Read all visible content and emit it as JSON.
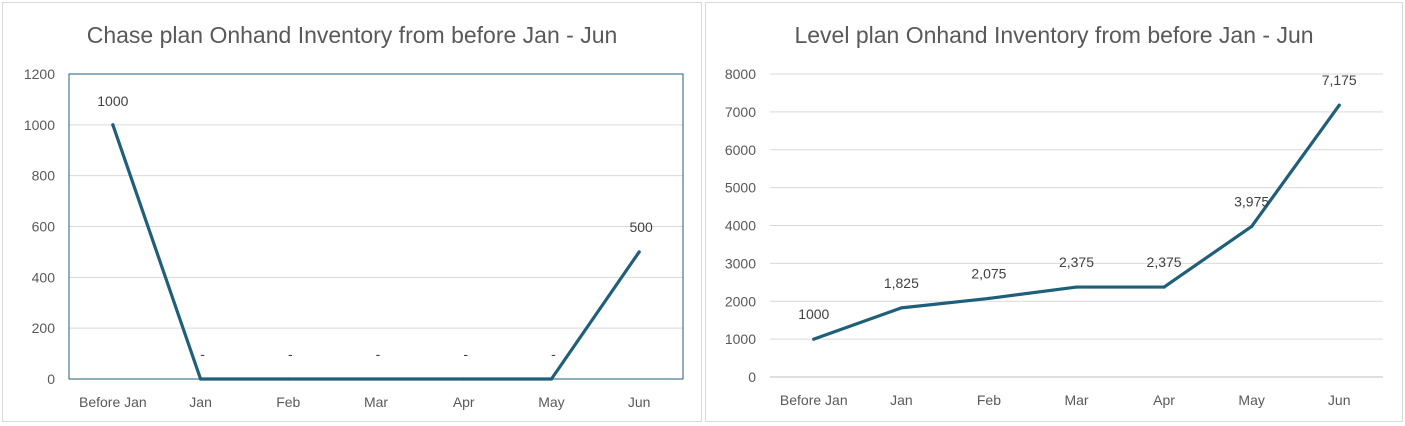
{
  "chart_data": [
    {
      "type": "line",
      "title": "Chase plan Onhand Inventory from before Jan - Jun",
      "categories": [
        "Before Jan",
        "Jan",
        "Feb",
        "Mar",
        "Apr",
        "May",
        "Jun"
      ],
      "values": [
        1000,
        0,
        0,
        0,
        0,
        0,
        500
      ],
      "data_labels": [
        "1000",
        "-",
        "-",
        "-",
        "-",
        "-",
        "500"
      ],
      "ylim": [
        0,
        1200
      ],
      "yticks": [
        "0",
        "200",
        "400",
        "600",
        "800",
        "1000",
        "1200"
      ],
      "xlabel": "",
      "ylabel": "",
      "grid": true,
      "legend": "none",
      "line_color": "#1f5f7a"
    },
    {
      "type": "line",
      "title": "Level plan Onhand Inventory from before Jan - Jun",
      "categories": [
        "Before Jan",
        "Jan",
        "Feb",
        "Mar",
        "Apr",
        "May",
        "Jun"
      ],
      "values": [
        1000,
        1825,
        2075,
        2375,
        2375,
        3975,
        7175
      ],
      "data_labels": [
        "1000",
        "1,825",
        "2,075",
        "2,375",
        "2,375",
        "3,975",
        "7,175"
      ],
      "ylim": [
        0,
        8000
      ],
      "yticks": [
        "0",
        "1000",
        "2000",
        "3000",
        "4000",
        "5000",
        "6000",
        "7000",
        "8000"
      ],
      "xlabel": "",
      "ylabel": "",
      "grid": true,
      "legend": "none",
      "line_color": "#1f5f7a"
    }
  ]
}
